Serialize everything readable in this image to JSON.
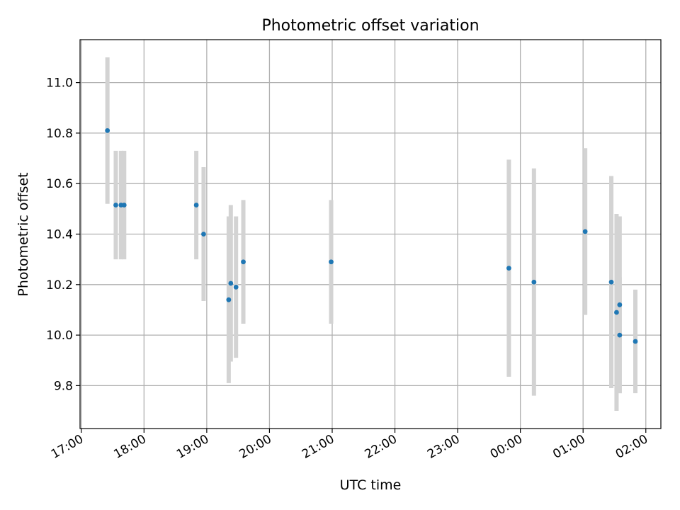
{
  "chart_data": {
    "type": "scatter",
    "title": "Photometric offset variation",
    "xlabel": "UTC time",
    "ylabel": "Photometric offset",
    "x_range_hours": [
      16.98,
      26.24
    ],
    "ylim": [
      9.63,
      11.17
    ],
    "grid": true,
    "x_ticks": [
      {
        "hour": 17,
        "label": "17:00"
      },
      {
        "hour": 18,
        "label": "18:00"
      },
      {
        "hour": 19,
        "label": "19:00"
      },
      {
        "hour": 20,
        "label": "20:00"
      },
      {
        "hour": 21,
        "label": "21:00"
      },
      {
        "hour": 22,
        "label": "22:00"
      },
      {
        "hour": 23,
        "label": "23:00"
      },
      {
        "hour": 24,
        "label": "00:00"
      },
      {
        "hour": 25,
        "label": "01:00"
      },
      {
        "hour": 26,
        "label": "02:00"
      }
    ],
    "y_ticks": [
      {
        "value": 9.8,
        "label": "9.8"
      },
      {
        "value": 10.0,
        "label": "10.0"
      },
      {
        "value": 10.2,
        "label": "10.2"
      },
      {
        "value": 10.4,
        "label": "10.4"
      },
      {
        "value": 10.6,
        "label": "10.6"
      },
      {
        "value": 10.8,
        "label": "10.8"
      },
      {
        "value": 11.0,
        "label": "11.0"
      }
    ],
    "series": [
      {
        "marker_color": "#1f77b4",
        "errorbar_color": "#d3d3d3",
        "points": [
          {
            "time": "17:25",
            "y": 10.81,
            "err": 0.29
          },
          {
            "time": "17:33",
            "y": 10.515,
            "err": 0.215
          },
          {
            "time": "17:38",
            "y": 10.515,
            "err": 0.215
          },
          {
            "time": "17:41",
            "y": 10.515,
            "err": 0.215
          },
          {
            "time": "18:50",
            "y": 10.515,
            "err": 0.215
          },
          {
            "time": "18:57",
            "y": 10.4,
            "err": 0.265
          },
          {
            "time": "19:21",
            "y": 10.14,
            "err": 0.33
          },
          {
            "time": "19:23",
            "y": 10.205,
            "err": 0.31
          },
          {
            "time": "19:28",
            "y": 10.19,
            "err": 0.28
          },
          {
            "time": "19:35",
            "y": 10.29,
            "err": 0.245
          },
          {
            "time": "20:59",
            "y": 10.29,
            "err": 0.245
          },
          {
            "time": "23:49",
            "y": 10.265,
            "err": 0.43
          },
          {
            "time": "00:13",
            "y": 10.21,
            "err": 0.45
          },
          {
            "time": "01:02",
            "y": 10.41,
            "err": 0.33
          },
          {
            "time": "01:27",
            "y": 10.21,
            "err": 0.42
          },
          {
            "time": "01:32",
            "y": 10.09,
            "err": 0.39
          },
          {
            "time": "01:35",
            "y": 10.12,
            "err": 0.35
          },
          {
            "time": "01:35",
            "y": 10.0,
            "err": 0.23
          },
          {
            "time": "01:50",
            "y": 9.975,
            "err": 0.205
          }
        ]
      }
    ]
  }
}
